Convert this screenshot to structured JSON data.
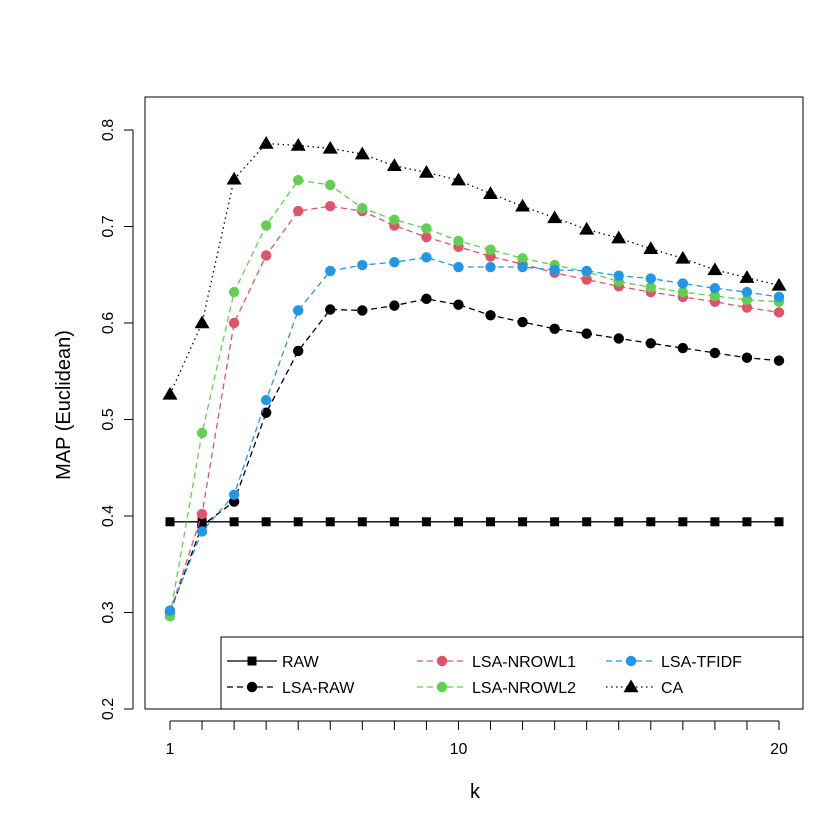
{
  "chart_data": {
    "type": "line",
    "title": "",
    "xlabel": "k",
    "ylabel": "MAP (Euclidean)",
    "xlim": [
      1,
      20
    ],
    "ylim": [
      0.2,
      0.8
    ],
    "x_ticks": [
      1,
      10,
      20
    ],
    "x_tick_labels": [
      "1",
      "10",
      "20"
    ],
    "y_ticks": [
      0.2,
      0.3,
      0.4,
      0.5,
      0.6,
      0.7,
      0.8
    ],
    "y_tick_labels": [
      "0.2",
      "0.3",
      "0.4",
      "0.5",
      "0.6",
      "0.7",
      "0.8"
    ],
    "grid": false,
    "legend_position": "bottom-right",
    "x": [
      1,
      2,
      3,
      4,
      5,
      6,
      7,
      8,
      9,
      10,
      11,
      12,
      13,
      14,
      15,
      16,
      17,
      18,
      19,
      20
    ],
    "series": [
      {
        "name": "RAW",
        "color": "#000000",
        "marker": "square",
        "line": "solid",
        "values": [
          0.394,
          0.394,
          0.394,
          0.394,
          0.394,
          0.394,
          0.394,
          0.394,
          0.394,
          0.394,
          0.394,
          0.394,
          0.394,
          0.394,
          0.394,
          0.394,
          0.394,
          0.394,
          0.394,
          0.394
        ]
      },
      {
        "name": "LSA-RAW",
        "color": "#000000",
        "marker": "circle",
        "line": "dashed",
        "values": [
          0.3,
          0.39,
          0.415,
          0.507,
          0.571,
          0.614,
          0.613,
          0.618,
          0.625,
          0.619,
          0.608,
          0.601,
          0.594,
          0.589,
          0.584,
          0.579,
          0.574,
          0.569,
          0.564,
          0.561
        ]
      },
      {
        "name": "LSA-NROWL1",
        "color": "#DF536B",
        "marker": "circle",
        "line": "dashed",
        "values": [
          0.3,
          0.402,
          0.6,
          0.67,
          0.716,
          0.721,
          0.716,
          0.701,
          0.689,
          0.679,
          0.669,
          0.661,
          0.652,
          0.645,
          0.638,
          0.632,
          0.627,
          0.622,
          0.616,
          0.611
        ]
      },
      {
        "name": "LSA-NROWL2",
        "color": "#61D04F",
        "marker": "circle",
        "line": "dashed",
        "values": [
          0.296,
          0.486,
          0.632,
          0.701,
          0.748,
          0.743,
          0.719,
          0.707,
          0.698,
          0.685,
          0.676,
          0.667,
          0.66,
          0.653,
          0.643,
          0.637,
          0.632,
          0.628,
          0.624,
          0.622
        ]
      },
      {
        "name": "LSA-TFIDF",
        "color": "#2297E6",
        "marker": "circle",
        "line": "dashed",
        "values": [
          0.302,
          0.384,
          0.422,
          0.52,
          0.613,
          0.654,
          0.66,
          0.663,
          0.668,
          0.658,
          0.658,
          0.658,
          0.655,
          0.654,
          0.649,
          0.646,
          0.641,
          0.636,
          0.632,
          0.627
        ]
      },
      {
        "name": "CA",
        "color": "#000000",
        "marker": "triangle",
        "line": "dotted",
        "values": [
          0.526,
          0.6,
          0.749,
          0.786,
          0.784,
          0.781,
          0.775,
          0.763,
          0.756,
          0.748,
          0.734,
          0.721,
          0.709,
          0.697,
          0.688,
          0.677,
          0.667,
          0.655,
          0.647,
          0.639
        ]
      }
    ],
    "legend_order": [
      "RAW",
      "LSA-RAW",
      "LSA-NROWL1",
      "LSA-NROWL2",
      "LSA-TFIDF",
      "CA"
    ]
  }
}
